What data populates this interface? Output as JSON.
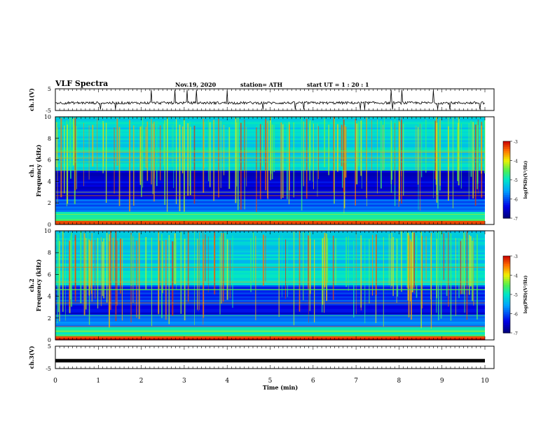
{
  "header": {
    "title": "VLF Spectra",
    "date": "Nov.19, 2020",
    "station": "station= ATH",
    "start_ut": "start  UT =   1 : 20 : 1"
  },
  "colors": {
    "trace": "#000000",
    "frame": "#000000"
  },
  "chart_data": [
    {
      "type": "line",
      "ylabel": "ch.1(V)",
      "xlim": [
        0,
        10
      ],
      "ylim": [
        -5,
        5
      ],
      "yticks": [
        5,
        -5
      ],
      "description_values": "noisy baseline around -1.5 V with spikes up to +5 and down to -5"
    },
    {
      "type": "heatmap",
      "ylabel": "ch.1\nFrequency (kHz)",
      "ylabel_top": "ch.1",
      "ylabel_bottom": "Frequency (kHz)",
      "xlim": [
        0,
        10
      ],
      "ylim": [
        0,
        10
      ],
      "yticks": [
        0,
        2,
        4,
        6,
        8,
        10
      ],
      "colorbar": {
        "label": "log(PSD)(V²/Hz)",
        "range": [
          -7,
          -3
        ],
        "ticks": [
          -3,
          -4,
          -5,
          -6,
          -7
        ]
      }
    },
    {
      "type": "heatmap",
      "ylabel_top": "ch.2",
      "ylabel_bottom": "Frequency (kHz)",
      "xlim": [
        0,
        10
      ],
      "ylim": [
        0,
        10
      ],
      "yticks": [
        0,
        2,
        4,
        6,
        8,
        10
      ],
      "colorbar": {
        "label": "log(PSD)(V²/Hz)",
        "range": [
          -7,
          -3
        ],
        "ticks": [
          -3,
          -4,
          -5,
          -6,
          -7
        ]
      }
    },
    {
      "type": "line",
      "ylabel": "ch.3(V)",
      "xlim": [
        0,
        10
      ],
      "ylim": [
        -5,
        5
      ],
      "yticks": [
        5,
        -5
      ],
      "values_constant": -1.5
    }
  ],
  "xaxis": {
    "label": "Time (min)",
    "ticks": [
      "0",
      "1",
      "2",
      "3",
      "4",
      "5",
      "6",
      "7",
      "8",
      "9",
      "10"
    ]
  }
}
